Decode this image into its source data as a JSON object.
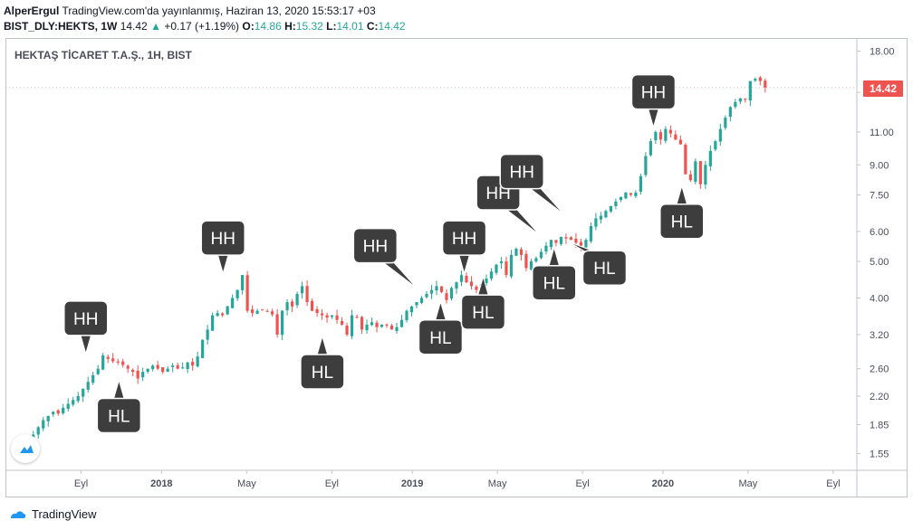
{
  "header": {
    "author": "AlperErgul",
    "published": "TradingView.com'da yayınlanmış, Haziran 13, 2020 15:53:17 +03",
    "symbol": "BIST_DLY:HEKTS, 1W",
    "last": "14.42",
    "arrow": "▲",
    "change": "+0.17 (+1.19%)",
    "o_label": "O:",
    "o_value": "14.86",
    "h_label": "H:",
    "h_value": "15.32",
    "l_label": "L:",
    "l_value": "14.01",
    "c_label": "C:",
    "c_value": "14.42"
  },
  "chart_title": "HEKTAŞ TİCARET T.A.Ş., 1H, BIST",
  "price_badge": "14.42",
  "footer": {
    "brand": "TradingView"
  },
  "colors": {
    "up": "#26a69a",
    "down": "#ef5350",
    "callout": "#3d3d3d",
    "axis_text": "#4a4e5a",
    "grid": "#e0e3eb"
  },
  "chart_data": {
    "type": "candlestick",
    "title": "HEKTAŞ TİCARET T.A.Ş., 1H, BIST",
    "y_scale": "log",
    "ylim": [
      1.4,
      19.5
    ],
    "y_ticks": [
      18.0,
      14.0,
      11.0,
      9.0,
      7.5,
      6.0,
      5.0,
      4.0,
      3.2,
      2.6,
      2.2,
      1.85,
      1.55
    ],
    "x_ticks": [
      {
        "label": "Eyl",
        "bold": false,
        "week": 26
      },
      {
        "label": "2018",
        "bold": true,
        "week": 43
      },
      {
        "label": "May",
        "bold": false,
        "week": 61
      },
      {
        "label": "Eyl",
        "bold": false,
        "week": 79
      },
      {
        "label": "2019",
        "bold": true,
        "week": 96
      },
      {
        "label": "May",
        "bold": false,
        "week": 114
      },
      {
        "label": "Eyl",
        "bold": false,
        "week": 132
      },
      {
        "label": "2020",
        "bold": true,
        "week": 149
      },
      {
        "label": "May",
        "bold": false,
        "week": 167
      },
      {
        "label": "Eyl",
        "bold": false,
        "week": 185
      }
    ],
    "week_range": [
      10,
      190
    ],
    "closes": [
      1.62,
      1.6,
      1.64,
      1.7,
      1.74,
      1.82,
      1.9,
      1.95,
      2.0,
      1.98,
      2.05,
      2.1,
      2.15,
      2.2,
      2.3,
      2.4,
      2.5,
      2.6,
      2.82,
      2.76,
      2.72,
      2.7,
      2.66,
      2.6,
      2.55,
      2.45,
      2.55,
      2.6,
      2.65,
      2.6,
      2.55,
      2.6,
      2.65,
      2.6,
      2.62,
      2.7,
      2.65,
      2.8,
      3.1,
      3.3,
      3.6,
      3.65,
      3.6,
      3.8,
      4.0,
      4.2,
      4.6,
      3.7,
      3.65,
      3.7,
      3.72,
      3.68,
      3.62,
      3.2,
      3.7,
      3.9,
      3.8,
      4.1,
      4.3,
      3.9,
      3.7,
      3.65,
      3.6,
      3.55,
      3.6,
      3.5,
      3.4,
      3.2,
      3.6,
      3.55,
      3.3,
      3.4,
      3.45,
      3.35,
      3.4,
      3.38,
      3.3,
      3.35,
      3.5,
      3.7,
      3.8,
      3.9,
      4.0,
      4.1,
      4.2,
      4.3,
      4.15,
      3.95,
      4.25,
      4.4,
      4.6,
      4.4,
      4.3,
      4.2,
      4.35,
      4.5,
      4.7,
      4.9,
      5.0,
      4.6,
      5.2,
      5.4,
      5.2,
      4.8,
      5.0,
      5.1,
      5.3,
      5.5,
      5.7,
      5.6,
      5.8,
      5.75,
      5.7,
      5.6,
      5.5,
      5.7,
      6.2,
      6.5,
      6.6,
      6.8,
      7.0,
      7.2,
      7.4,
      7.6,
      7.5,
      7.6,
      8.4,
      9.5,
      10.4,
      11.0,
      10.5,
      11.2,
      10.9,
      10.5,
      10.2,
      8.5,
      8.2,
      9.2,
      8.0,
      9.0,
      9.8,
      10.4,
      11.2,
      12.0,
      12.8,
      13.2,
      13.5,
      13.4,
      15.0,
      15.2,
      15.0,
      14.42
    ],
    "annotations": [
      {
        "label": "HH",
        "week": 27,
        "price": 2.82,
        "pos": "above"
      },
      {
        "label": "HL",
        "week": 34,
        "price": 2.45,
        "pos": "below"
      },
      {
        "label": "HH",
        "week": 56,
        "price": 4.6,
        "pos": "above"
      },
      {
        "label": "HL",
        "week": 77,
        "price": 3.2,
        "pos": "below"
      },
      {
        "label": "HH",
        "week": 97,
        "price": 4.2,
        "pos": "above-left"
      },
      {
        "label": "HL",
        "week": 102,
        "price": 3.95,
        "pos": "below"
      },
      {
        "label": "HH",
        "week": 107,
        "price": 4.6,
        "pos": "above"
      },
      {
        "label": "HL",
        "week": 111,
        "price": 4.6,
        "pos": "below"
      },
      {
        "label": "HH",
        "week": 123,
        "price": 5.8,
        "pos": "above-left"
      },
      {
        "label": "HL",
        "week": 126,
        "price": 5.5,
        "pos": "below"
      },
      {
        "label": "HH",
        "week": 128,
        "price": 6.6,
        "pos": "above-left"
      },
      {
        "label": "HL",
        "week": 129,
        "price": 5.7,
        "pos": "below-right"
      },
      {
        "label": "HH",
        "week": 147,
        "price": 11.2,
        "pos": "above"
      },
      {
        "label": "HL",
        "week": 153,
        "price": 8.0,
        "pos": "below"
      }
    ]
  }
}
